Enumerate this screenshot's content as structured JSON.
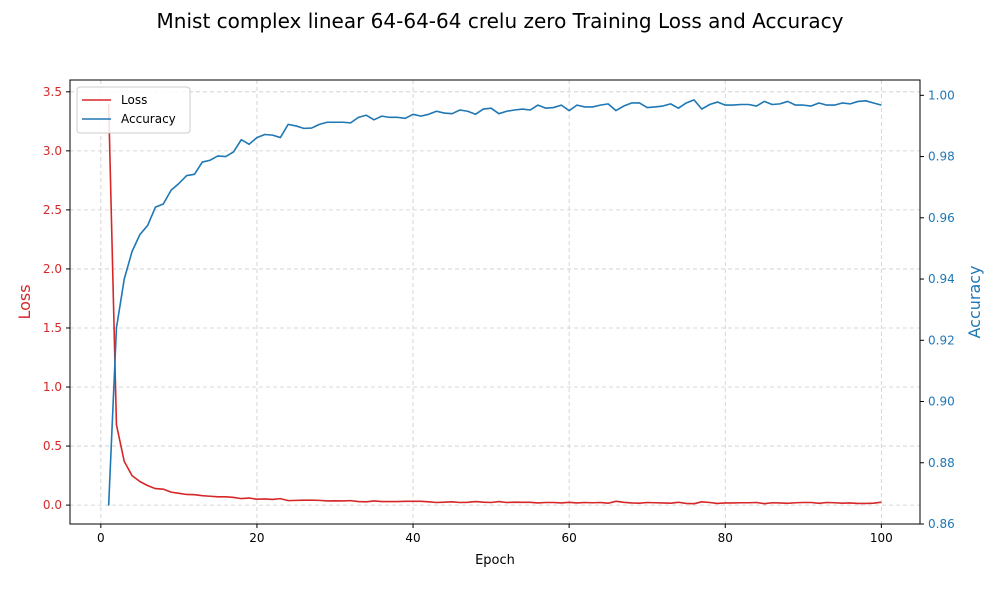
{
  "chart_data": {
    "type": "line",
    "title": "Mnist complex linear 64-64-64 crelu zero Training Loss and Accuracy",
    "xlabel": "Epoch",
    "ylabel_left": "Loss",
    "ylabel_right": "Accuracy",
    "xlim": [
      -3.95,
      104.95
    ],
    "ylim_left": [
      -0.16,
      3.6
    ],
    "ylim_right": [
      0.86,
      1.005
    ],
    "x_ticks": [
      0,
      20,
      40,
      60,
      80,
      100
    ],
    "y_left_ticks": [
      "0.0",
      "0.5",
      "1.0",
      "1.5",
      "2.0",
      "2.5",
      "3.0",
      "3.5"
    ],
    "y_right_ticks": [
      "0.86",
      "0.88",
      "0.90",
      "0.92",
      "0.94",
      "0.96",
      "0.98",
      "1.00"
    ],
    "grid": true,
    "legend_position": "top-left",
    "colors": {
      "loss": "#d62728",
      "accuracy": "#1f77b4",
      "grid": "#cccccc"
    },
    "series": [
      {
        "name": "Loss",
        "axis": "left",
        "x": [
          1,
          2,
          3,
          4,
          5,
          6,
          7,
          8,
          9,
          10,
          11,
          12,
          13,
          14,
          15,
          16,
          17,
          18,
          19,
          20,
          21,
          22,
          23,
          24,
          25,
          26,
          27,
          28,
          29,
          30,
          31,
          32,
          33,
          34,
          35,
          36,
          37,
          38,
          39,
          40,
          41,
          42,
          43,
          44,
          45,
          46,
          47,
          48,
          49,
          50,
          51,
          52,
          53,
          54,
          55,
          56,
          57,
          58,
          59,
          60,
          61,
          62,
          63,
          64,
          65,
          66,
          67,
          68,
          69,
          70,
          71,
          72,
          73,
          74,
          75,
          76,
          77,
          78,
          79,
          80,
          81,
          82,
          83,
          84,
          85,
          86,
          87,
          88,
          89,
          90,
          91,
          92,
          93,
          94,
          95,
          96,
          97,
          98,
          99,
          100
        ],
        "values": [
          3.4,
          0.68,
          0.37,
          0.25,
          0.2,
          0.165,
          0.14,
          0.135,
          0.11,
          0.1,
          0.09,
          0.088,
          0.08,
          0.075,
          0.07,
          0.07,
          0.065,
          0.055,
          0.06,
          0.05,
          0.052,
          0.048,
          0.055,
          0.038,
          0.04,
          0.042,
          0.042,
          0.04,
          0.035,
          0.036,
          0.035,
          0.038,
          0.03,
          0.028,
          0.035,
          0.03,
          0.03,
          0.03,
          0.032,
          0.032,
          0.032,
          0.028,
          0.022,
          0.025,
          0.028,
          0.022,
          0.024,
          0.03,
          0.025,
          0.022,
          0.03,
          0.022,
          0.025,
          0.024,
          0.024,
          0.018,
          0.022,
          0.022,
          0.018,
          0.024,
          0.018,
          0.022,
          0.02,
          0.022,
          0.016,
          0.032,
          0.024,
          0.018,
          0.016,
          0.022,
          0.02,
          0.018,
          0.016,
          0.024,
          0.014,
          0.012,
          0.028,
          0.022,
          0.014,
          0.018,
          0.018,
          0.02,
          0.02,
          0.022,
          0.012,
          0.02,
          0.018,
          0.015,
          0.02,
          0.022,
          0.022,
          0.015,
          0.022,
          0.02,
          0.016,
          0.018,
          0.014,
          0.014,
          0.016,
          0.025
        ]
      },
      {
        "name": "Accuracy",
        "axis": "right",
        "x": [
          1,
          2,
          3,
          4,
          5,
          6,
          7,
          8,
          9,
          10,
          11,
          12,
          13,
          14,
          15,
          16,
          17,
          18,
          19,
          20,
          21,
          22,
          23,
          24,
          25,
          26,
          27,
          28,
          29,
          30,
          31,
          32,
          33,
          34,
          35,
          36,
          37,
          38,
          39,
          40,
          41,
          42,
          43,
          44,
          45,
          46,
          47,
          48,
          49,
          50,
          51,
          52,
          53,
          54,
          55,
          56,
          57,
          58,
          59,
          60,
          61,
          62,
          63,
          64,
          65,
          66,
          67,
          68,
          69,
          70,
          71,
          72,
          73,
          74,
          75,
          76,
          77,
          78,
          79,
          80,
          81,
          82,
          83,
          84,
          85,
          86,
          87,
          88,
          89,
          90,
          91,
          92,
          93,
          94,
          95,
          96,
          97,
          98,
          99,
          100
        ],
        "values": [
          0.866,
          0.924,
          0.94,
          0.949,
          0.9545,
          0.9575,
          0.9635,
          0.9645,
          0.969,
          0.9712,
          0.9738,
          0.9742,
          0.9782,
          0.9788,
          0.9802,
          0.98,
          0.9815,
          0.9855,
          0.984,
          0.9862,
          0.9872,
          0.987,
          0.9862,
          0.9905,
          0.99,
          0.9892,
          0.9893,
          0.9905,
          0.9912,
          0.9912,
          0.9912,
          0.991,
          0.9928,
          0.9935,
          0.992,
          0.9932,
          0.9928,
          0.9928,
          0.9925,
          0.9938,
          0.9932,
          0.9938,
          0.9948,
          0.9942,
          0.994,
          0.9952,
          0.9948,
          0.9938,
          0.9955,
          0.9958,
          0.994,
          0.9948,
          0.9952,
          0.9955,
          0.9952,
          0.9968,
          0.9958,
          0.996,
          0.9968,
          0.995,
          0.9968,
          0.9962,
          0.9962,
          0.9968,
          0.9972,
          0.995,
          0.9965,
          0.9975,
          0.9975,
          0.996,
          0.9962,
          0.9965,
          0.9972,
          0.9958,
          0.9975,
          0.9985,
          0.9955,
          0.997,
          0.9978,
          0.9968,
          0.9968,
          0.997,
          0.997,
          0.9965,
          0.998,
          0.997,
          0.9972,
          0.998,
          0.9968,
          0.9968,
          0.9965,
          0.9975,
          0.9968,
          0.9968,
          0.9975,
          0.9972,
          0.998,
          0.9982,
          0.9975,
          0.9968
        ]
      }
    ]
  }
}
